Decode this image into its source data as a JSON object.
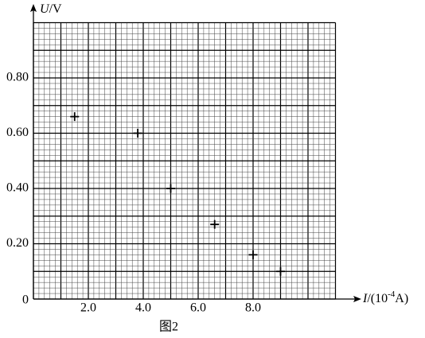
{
  "chart_data": {
    "type": "scatter",
    "x_label": {
      "symbol": "I",
      "unit_start": "/(10",
      "exponent": "-4",
      "unit_end": "A)"
    },
    "y_label": {
      "symbol": "U",
      "unit": "/V"
    },
    "caption": "图2",
    "x": [
      1.5,
      3.8,
      5.0,
      6.6,
      8.0,
      9.0
    ],
    "values": [
      0.66,
      0.6,
      0.4,
      0.27,
      0.16,
      0.1
    ],
    "color": "#000000",
    "xlim": [
      0,
      11
    ],
    "ylim": [
      0,
      1.0
    ],
    "xticks": [
      {
        "value": 2,
        "label": "2.0"
      },
      {
        "value": 4,
        "label": "4.0"
      },
      {
        "value": 6,
        "label": "6.0"
      },
      {
        "value": 8,
        "label": "8.0"
      }
    ],
    "yticks": [
      0,
      {
        "value": 0.2,
        "label": "0.20"
      },
      {
        "value": 0.4,
        "label": "0.40"
      },
      {
        "value": 0.6,
        "label": "0.60"
      },
      {
        "value": 0.8,
        "label": "0.80"
      }
    ],
    "grid": true
  }
}
